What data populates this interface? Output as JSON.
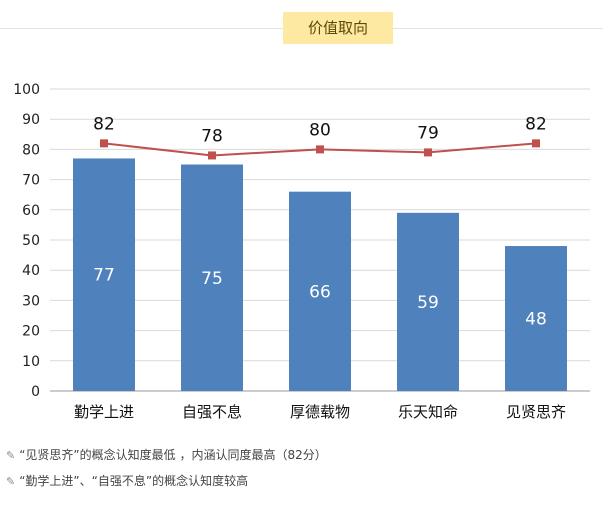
{
  "header": {
    "title": "价值取向"
  },
  "chart_data": {
    "type": "bar+line",
    "categories": [
      "勤学上进",
      "自强不息",
      "厚德载物",
      "乐天知命",
      "见贤思齐"
    ],
    "series": [
      {
        "type": "bar",
        "values": [
          77,
          75,
          66,
          59,
          48
        ],
        "color": "#4f81bd"
      },
      {
        "type": "line",
        "values": [
          82,
          78,
          80,
          79,
          82
        ],
        "color": "#c0504d"
      }
    ],
    "ylim": [
      0,
      100
    ],
    "yticks": [
      0,
      10,
      20,
      30,
      40,
      50,
      60,
      70,
      80,
      90,
      100
    ],
    "grid": true
  },
  "notes": [
    {
      "icon": "pencil-icon",
      "text": "“见贤思齐”的概念认知度最低 ，内涵认同度最高（82分）"
    },
    {
      "icon": "pencil-icon",
      "text": "“勤学上进”、“自强不息”的概念认知度较高"
    }
  ]
}
